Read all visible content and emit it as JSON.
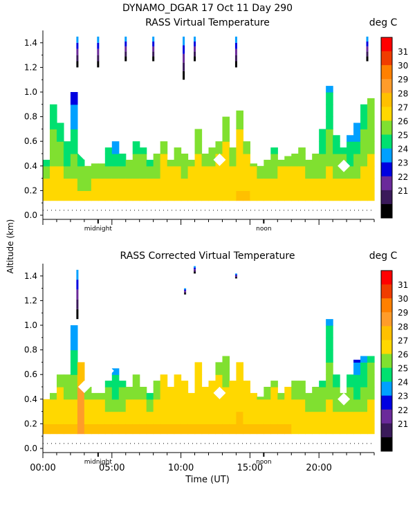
{
  "header": {
    "title": "DYNAMO_DGAR  17 Oct 11 Day 290"
  },
  "y_axis_label": "Altitude (km)",
  "x_axis_label": "Time (UT)",
  "x_tick_labels": [
    "00:00",
    "05:00",
    "10:00",
    "15:00",
    "20:00"
  ],
  "midnight_label": "midnight",
  "noon_label": "noon",
  "colorbar": {
    "unit": "deg C",
    "labels": [
      "31",
      "30",
      "29",
      "28",
      "27",
      "26",
      "25",
      "24",
      "23",
      "22",
      "21"
    ],
    "colors": [
      "#ff0000",
      "#f03c00",
      "#ff8000",
      "#ff9c2a",
      "#ffc000",
      "#ffd800",
      "#80e030",
      "#00e070",
      "#00a0ff",
      "#0000e0",
      "#6a2a9a",
      "#3a1a5a",
      "#000000"
    ]
  },
  "chart_data": [
    {
      "type": "heatmap",
      "title": "RASS Virtual Temperature",
      "xlabel": "Time (UT)",
      "ylabel": "Altitude (km)",
      "units": "deg C",
      "xlim": [
        0,
        24
      ],
      "ylim": [
        0,
        1.5
      ],
      "clim": [
        21,
        32
      ],
      "yticks": [
        "0.0",
        "0.2",
        "0.4",
        "0.6",
        "0.8",
        "1.0",
        "1.2",
        "1.4"
      ],
      "columns": [
        {
          "t": 0.0,
          "top": 0.45,
          "t0": 28.8,
          "t1": 26.5
        },
        {
          "t": 0.5,
          "top": 0.9,
          "t0": 28.8,
          "t1": 26.0
        },
        {
          "t": 1.0,
          "top": 0.75,
          "t0": 28.8,
          "t1": 26.0
        },
        {
          "t": 1.5,
          "top": 0.6,
          "t0": 28.6,
          "t1": 25.5
        },
        {
          "t": 2.0,
          "top": 1.0,
          "t0": 28.6,
          "t1": 24.5
        },
        {
          "t": 2.5,
          "top": 0.5,
          "t0": 28.6,
          "t1": 25.5
        },
        {
          "t": 3.0,
          "top": 0.4,
          "t0": 28.5,
          "t1": 26.5
        },
        {
          "t": 3.5,
          "top": 0.42,
          "t0": 28.5,
          "t1": 27.0
        },
        {
          "t": 4.0,
          "top": 0.42,
          "t0": 28.5,
          "t1": 27.0
        },
        {
          "t": 4.5,
          "top": 0.55,
          "t0": 28.5,
          "t1": 26.0
        },
        {
          "t": 5.0,
          "top": 0.6,
          "t0": 28.6,
          "t1": 25.0
        },
        {
          "t": 5.5,
          "top": 0.5,
          "t0": 28.6,
          "t1": 26.0
        },
        {
          "t": 6.0,
          "top": 0.45,
          "t0": 28.8,
          "t1": 27.0
        },
        {
          "t": 6.5,
          "top": 0.6,
          "t0": 28.8,
          "t1": 26.0
        },
        {
          "t": 7.0,
          "top": 0.55,
          "t0": 28.8,
          "t1": 26.5
        },
        {
          "t": 7.5,
          "top": 0.45,
          "t0": 28.8,
          "t1": 26.0
        },
        {
          "t": 8.0,
          "top": 0.5,
          "t0": 28.8,
          "t1": 26.5
        },
        {
          "t": 8.5,
          "top": 0.6,
          "t0": 28.8,
          "t1": 27.5
        },
        {
          "t": 9.0,
          "top": 0.45,
          "t0": 28.8,
          "t1": 27.5
        },
        {
          "t": 9.5,
          "top": 0.55,
          "t0": 28.8,
          "t1": 27.5
        },
        {
          "t": 10.0,
          "top": 0.5,
          "t0": 28.8,
          "t1": 27.0
        },
        {
          "t": 10.5,
          "top": 0.45,
          "t0": 28.8,
          "t1": 27.5
        },
        {
          "t": 11.0,
          "top": 0.7,
          "t0": 28.8,
          "t1": 27.5
        },
        {
          "t": 11.5,
          "top": 0.5,
          "t0": 28.8,
          "t1": 27.5
        },
        {
          "t": 12.0,
          "top": 0.55,
          "t0": 28.8,
          "t1": 27.5
        },
        {
          "t": 12.5,
          "top": 0.6,
          "t0": 28.8,
          "t1": 27.5
        },
        {
          "t": 13.0,
          "top": 0.8,
          "t0": 28.8,
          "t1": 27.5
        },
        {
          "t": 13.5,
          "top": 0.55,
          "t0": 28.8,
          "t1": 27.5
        },
        {
          "t": 14.0,
          "top": 0.85,
          "t0": 29.0,
          "t1": 27.5
        },
        {
          "t": 14.5,
          "top": 0.6,
          "t0": 29.0,
          "t1": 27.5
        },
        {
          "t": 15.0,
          "top": 0.42,
          "t0": 28.8,
          "t1": 27.5
        },
        {
          "t": 15.5,
          "top": 0.4,
          "t0": 28.8,
          "t1": 27.5
        },
        {
          "t": 16.0,
          "top": 0.45,
          "t0": 28.8,
          "t1": 27.0
        },
        {
          "t": 16.5,
          "top": 0.55,
          "t0": 28.8,
          "t1": 26.5
        },
        {
          "t": 17.0,
          "top": 0.45,
          "t0": 28.8,
          "t1": 27.5
        },
        {
          "t": 17.5,
          "top": 0.48,
          "t0": 28.8,
          "t1": 27.5
        },
        {
          "t": 18.0,
          "top": 0.5,
          "t0": 28.6,
          "t1": 27.5
        },
        {
          "t": 18.5,
          "top": 0.55,
          "t0": 28.6,
          "t1": 27.5
        },
        {
          "t": 19.0,
          "top": 0.45,
          "t0": 28.6,
          "t1": 27.0
        },
        {
          "t": 19.5,
          "top": 0.5,
          "t0": 28.6,
          "t1": 26.5
        },
        {
          "t": 20.0,
          "top": 0.7,
          "t0": 28.6,
          "t1": 25.5
        },
        {
          "t": 20.5,
          "top": 1.05,
          "t0": 28.6,
          "t1": 25.5
        },
        {
          "t": 21.0,
          "top": 0.65,
          "t0": 28.6,
          "t1": 26.0
        },
        {
          "t": 21.5,
          "top": 0.55,
          "t0": 28.6,
          "t1": 26.5
        },
        {
          "t": 22.0,
          "top": 0.65,
          "t0": 28.6,
          "t1": 25.5
        },
        {
          "t": 22.5,
          "top": 0.75,
          "t0": 28.6,
          "t1": 25.0
        },
        {
          "t": 23.0,
          "top": 0.9,
          "t0": 28.6,
          "t1": 26.0
        },
        {
          "t": 23.5,
          "top": 0.95,
          "t0": 28.6,
          "t1": 27.0
        }
      ],
      "upper_streaks": [
        {
          "t": 2.5,
          "y0": 1.2,
          "y1": 1.45
        },
        {
          "t": 4.0,
          "y0": 1.2,
          "y1": 1.45
        },
        {
          "t": 6.0,
          "y0": 1.25,
          "y1": 1.45
        },
        {
          "t": 8.0,
          "y0": 1.25,
          "y1": 1.45
        },
        {
          "t": 10.2,
          "y0": 1.1,
          "y1": 1.45
        },
        {
          "t": 11.0,
          "y0": 1.25,
          "y1": 1.45
        },
        {
          "t": 14.0,
          "y0": 1.2,
          "y1": 1.45
        },
        {
          "t": 23.5,
          "y0": 1.25,
          "y1": 1.45
        }
      ]
    },
    {
      "type": "heatmap",
      "title": "RASS Corrected Virtual Temperature",
      "xlabel": "Time (UT)",
      "ylabel": "Altitude (km)",
      "units": "deg C",
      "xlim": [
        0,
        24
      ],
      "ylim": [
        0,
        1.5
      ],
      "clim": [
        21,
        32
      ],
      "yticks": [
        "0.0",
        "0.2",
        "0.4",
        "0.6",
        "0.8",
        "1.0",
        "1.2",
        "1.4"
      ],
      "columns": [
        {
          "t": 0.0,
          "top": 0.4,
          "t0": 29.2,
          "t1": 27.5
        },
        {
          "t": 0.5,
          "top": 0.45,
          "t0": 29.2,
          "t1": 27.5
        },
        {
          "t": 1.0,
          "top": 0.6,
          "t0": 29.2,
          "t1": 27.5
        },
        {
          "t": 1.5,
          "top": 0.6,
          "t0": 29.2,
          "t1": 27.0
        },
        {
          "t": 2.0,
          "top": 1.0,
          "t0": 29.2,
          "t1": 25.0
        },
        {
          "t": 2.5,
          "top": 0.7,
          "t0": 30.5,
          "t1": 29.5
        },
        {
          "t": 3.0,
          "top": 0.5,
          "t0": 29.2,
          "t1": 27.5
        },
        {
          "t": 3.5,
          "top": 0.45,
          "t0": 29.0,
          "t1": 27.5
        },
        {
          "t": 4.0,
          "top": 0.45,
          "t0": 29.0,
          "t1": 27.5
        },
        {
          "t": 4.5,
          "top": 0.55,
          "t0": 29.0,
          "t1": 26.5
        },
        {
          "t": 5.0,
          "top": 0.65,
          "t0": 29.0,
          "t1": 25.0
        },
        {
          "t": 5.5,
          "top": 0.55,
          "t0": 29.0,
          "t1": 26.5
        },
        {
          "t": 6.0,
          "top": 0.5,
          "t0": 29.0,
          "t1": 27.0
        },
        {
          "t": 6.5,
          "top": 0.6,
          "t0": 29.0,
          "t1": 26.5
        },
        {
          "t": 7.0,
          "top": 0.5,
          "t0": 29.0,
          "t1": 27.5
        },
        {
          "t": 7.5,
          "top": 0.45,
          "t0": 29.0,
          "t1": 26.5
        },
        {
          "t": 8.0,
          "top": 0.55,
          "t0": 29.0,
          "t1": 27.0
        },
        {
          "t": 8.5,
          "top": 0.6,
          "t0": 29.0,
          "t1": 28.0
        },
        {
          "t": 9.0,
          "top": 0.5,
          "t0": 29.0,
          "t1": 28.0
        },
        {
          "t": 9.5,
          "top": 0.6,
          "t0": 29.0,
          "t1": 28.5
        },
        {
          "t": 10.0,
          "top": 0.55,
          "t0": 29.0,
          "t1": 28.5
        },
        {
          "t": 10.5,
          "top": 0.45,
          "t0": 29.0,
          "t1": 28.0
        },
        {
          "t": 11.0,
          "top": 0.7,
          "t0": 29.0,
          "t1": 28.5
        },
        {
          "t": 11.5,
          "top": 0.5,
          "t0": 29.0,
          "t1": 28.0
        },
        {
          "t": 12.0,
          "top": 0.55,
          "t0": 29.0,
          "t1": 28.0
        },
        {
          "t": 12.5,
          "top": 0.7,
          "t0": 29.0,
          "t1": 27.5
        },
        {
          "t": 13.0,
          "top": 0.75,
          "t0": 29.0,
          "t1": 27.0
        },
        {
          "t": 13.5,
          "top": 0.55,
          "t0": 29.0,
          "t1": 28.0
        },
        {
          "t": 14.0,
          "top": 0.7,
          "t0": 29.2,
          "t1": 28.5
        },
        {
          "t": 14.5,
          "top": 0.55,
          "t0": 29.0,
          "t1": 28.0
        },
        {
          "t": 15.0,
          "top": 0.45,
          "t0": 29.0,
          "t1": 28.0
        },
        {
          "t": 15.5,
          "top": 0.42,
          "t0": 29.0,
          "t1": 27.5
        },
        {
          "t": 16.0,
          "top": 0.5,
          "t0": 29.0,
          "t1": 27.0
        },
        {
          "t": 16.5,
          "top": 0.55,
          "t0": 29.0,
          "t1": 27.5
        },
        {
          "t": 17.0,
          "top": 0.45,
          "t0": 29.0,
          "t1": 27.5
        },
        {
          "t": 17.5,
          "top": 0.5,
          "t0": 29.0,
          "t1": 28.0
        },
        {
          "t": 18.0,
          "top": 0.55,
          "t0": 28.8,
          "t1": 27.5
        },
        {
          "t": 18.5,
          "top": 0.55,
          "t0": 28.8,
          "t1": 27.5
        },
        {
          "t": 19.0,
          "top": 0.45,
          "t0": 28.8,
          "t1": 27.0
        },
        {
          "t": 19.5,
          "top": 0.5,
          "t0": 28.8,
          "t1": 26.5
        },
        {
          "t": 20.0,
          "top": 0.55,
          "t0": 28.8,
          "t1": 26.5
        },
        {
          "t": 20.5,
          "top": 1.05,
          "t0": 28.8,
          "t1": 25.5
        },
        {
          "t": 21.0,
          "top": 0.6,
          "t0": 28.8,
          "t1": 26.5
        },
        {
          "t": 21.5,
          "top": 0.45,
          "t0": 28.8,
          "t1": 27.0
        },
        {
          "t": 22.0,
          "top": 0.6,
          "t0": 28.8,
          "t1": 26.0
        },
        {
          "t": 22.5,
          "top": 0.72,
          "t0": 28.8,
          "t1": 24.5
        },
        {
          "t": 23.0,
          "top": 0.75,
          "t0": 28.8,
          "t1": 25.5
        },
        {
          "t": 23.5,
          "top": 0.75,
          "t0": 28.8,
          "t1": 26.5
        }
      ],
      "upper_streaks": [
        {
          "t": 2.5,
          "y0": 1.05,
          "y1": 1.45
        },
        {
          "t": 10.3,
          "y0": 1.25,
          "y1": 1.3
        },
        {
          "t": 11.0,
          "y0": 1.42,
          "y1": 1.48
        },
        {
          "t": 14.0,
          "y0": 1.38,
          "y1": 1.42
        }
      ]
    }
  ]
}
